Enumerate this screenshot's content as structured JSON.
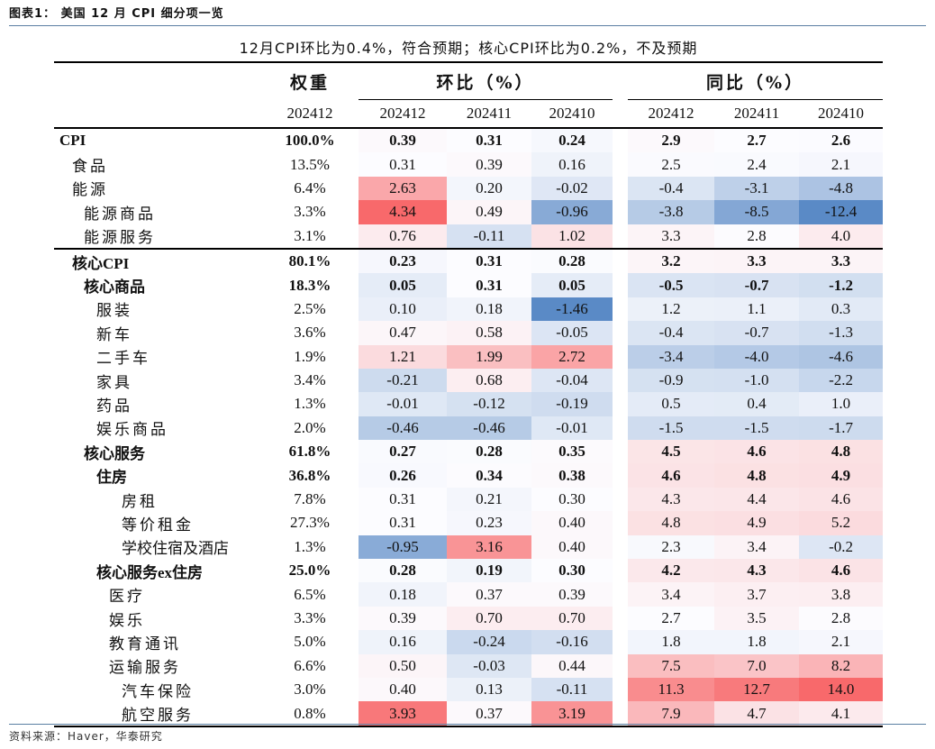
{
  "title": "图表1： 美国 12 月 CPI 细分项一览",
  "subtitle": "12月CPI环比为0.4%，符合预期；核心CPI环比为0.2%，不及预期",
  "headers": {
    "weight": "权重",
    "mom": "环比（%）",
    "yoy": "同比（%）",
    "weight_period": "202412",
    "periods": [
      "202412",
      "202411",
      "202410"
    ]
  },
  "colors": {
    "high": "#F8696B",
    "mid": "#FCFCFF",
    "low": "#5A8AC6"
  },
  "rows": [
    {
      "label": "CPI",
      "level": 0,
      "bold": true,
      "weight": "100.0%",
      "mom": [
        "0.39",
        "0.31",
        "0.24"
      ],
      "yoy": [
        "2.9",
        "2.7",
        "2.6"
      ]
    },
    {
      "label": "食品",
      "level": 1,
      "bold": false,
      "weight": "13.5%",
      "mom": [
        "0.31",
        "0.39",
        "0.16"
      ],
      "yoy": [
        "2.5",
        "2.4",
        "2.1"
      ]
    },
    {
      "label": "能源",
      "level": 1,
      "bold": false,
      "weight": "6.4%",
      "mom": [
        "2.63",
        "0.20",
        "-0.02"
      ],
      "yoy": [
        "-0.4",
        "-3.1",
        "-4.8"
      ]
    },
    {
      "label": "能源商品",
      "level": 2,
      "bold": false,
      "weight": "3.3%",
      "mom": [
        "4.34",
        "0.49",
        "-0.96"
      ],
      "yoy": [
        "-3.8",
        "-8.5",
        "-12.4"
      ]
    },
    {
      "label": "能源服务",
      "level": 2,
      "bold": false,
      "weight": "3.1%",
      "mom": [
        "0.76",
        "-0.11",
        "1.02"
      ],
      "yoy": [
        "3.3",
        "2.8",
        "4.0"
      ]
    },
    {
      "label": "核心CPI",
      "level": 1,
      "bold": true,
      "weight": "80.1%",
      "mom": [
        "0.23",
        "0.31",
        "0.28"
      ],
      "yoy": [
        "3.2",
        "3.3",
        "3.3"
      ]
    },
    {
      "label": "核心商品",
      "level": 2,
      "bold": true,
      "weight": "18.3%",
      "mom": [
        "0.05",
        "0.31",
        "0.05"
      ],
      "yoy": [
        "-0.5",
        "-0.7",
        "-1.2"
      ]
    },
    {
      "label": "服装",
      "level": 3,
      "bold": false,
      "weight": "2.5%",
      "mom": [
        "0.10",
        "0.18",
        "-1.46"
      ],
      "yoy": [
        "1.2",
        "1.1",
        "0.3"
      ]
    },
    {
      "label": "新车",
      "level": 3,
      "bold": false,
      "weight": "3.6%",
      "mom": [
        "0.47",
        "0.58",
        "-0.05"
      ],
      "yoy": [
        "-0.4",
        "-0.7",
        "-1.3"
      ]
    },
    {
      "label": "二手车",
      "level": 3,
      "bold": false,
      "weight": "1.9%",
      "mom": [
        "1.21",
        "1.99",
        "2.72"
      ],
      "yoy": [
        "-3.4",
        "-4.0",
        "-4.6"
      ]
    },
    {
      "label": "家具",
      "level": 3,
      "bold": false,
      "weight": "3.4%",
      "mom": [
        "-0.21",
        "0.68",
        "-0.04"
      ],
      "yoy": [
        "-0.9",
        "-1.0",
        "-2.2"
      ]
    },
    {
      "label": "药品",
      "level": 3,
      "bold": false,
      "weight": "1.3%",
      "mom": [
        "-0.01",
        "-0.12",
        "-0.19"
      ],
      "yoy": [
        "0.5",
        "0.4",
        "1.0"
      ]
    },
    {
      "label": "娱乐商品",
      "level": 3,
      "bold": false,
      "weight": "2.0%",
      "mom": [
        "-0.46",
        "-0.46",
        "-0.01"
      ],
      "yoy": [
        "-1.5",
        "-1.5",
        "-1.7"
      ]
    },
    {
      "label": "核心服务",
      "level": 2,
      "bold": true,
      "weight": "61.8%",
      "mom": [
        "0.27",
        "0.28",
        "0.35"
      ],
      "yoy": [
        "4.5",
        "4.6",
        "4.8"
      ]
    },
    {
      "label": "住房",
      "level": 3,
      "bold": true,
      "weight": "36.8%",
      "mom": [
        "0.26",
        "0.34",
        "0.38"
      ],
      "yoy": [
        "4.6",
        "4.8",
        "4.9"
      ]
    },
    {
      "label": "房租",
      "level": 5,
      "bold": false,
      "weight": "7.8%",
      "mom": [
        "0.31",
        "0.21",
        "0.30"
      ],
      "yoy": [
        "4.3",
        "4.4",
        "4.6"
      ]
    },
    {
      "label": "等价租金",
      "level": 5,
      "bold": false,
      "weight": "27.3%",
      "mom": [
        "0.31",
        "0.23",
        "0.40"
      ],
      "yoy": [
        "4.8",
        "4.9",
        "5.2"
      ]
    },
    {
      "label": "学校住宿及酒店",
      "level": 5,
      "bold": false,
      "weight": "1.3%",
      "mom": [
        "-0.95",
        "3.16",
        "0.40"
      ],
      "yoy": [
        "2.3",
        "3.4",
        "-0.2"
      ]
    },
    {
      "label": "核心服务ex住房",
      "level": 3,
      "bold": true,
      "weight": "25.0%",
      "mom": [
        "0.28",
        "0.19",
        "0.30"
      ],
      "yoy": [
        "4.2",
        "4.3",
        "4.6"
      ]
    },
    {
      "label": "医疗",
      "level": 4,
      "bold": false,
      "weight": "6.5%",
      "mom": [
        "0.18",
        "0.37",
        "0.39"
      ],
      "yoy": [
        "3.4",
        "3.7",
        "3.8"
      ]
    },
    {
      "label": "娱乐",
      "level": 4,
      "bold": false,
      "weight": "3.3%",
      "mom": [
        "0.39",
        "0.70",
        "0.70"
      ],
      "yoy": [
        "2.7",
        "3.5",
        "2.8"
      ]
    },
    {
      "label": "教育通讯",
      "level": 4,
      "bold": false,
      "weight": "5.0%",
      "mom": [
        "0.16",
        "-0.24",
        "-0.16"
      ],
      "yoy": [
        "1.8",
        "1.8",
        "2.1"
      ]
    },
    {
      "label": "运输服务",
      "level": 4,
      "bold": false,
      "weight": "6.6%",
      "mom": [
        "0.50",
        "-0.03",
        "0.44"
      ],
      "yoy": [
        "7.5",
        "7.0",
        "8.2"
      ]
    },
    {
      "label": "汽车保险",
      "level": 5,
      "bold": false,
      "weight": "3.0%",
      "mom": [
        "0.40",
        "0.13",
        "-0.11"
      ],
      "yoy": [
        "11.3",
        "12.7",
        "14.0"
      ]
    },
    {
      "label": "航空服务",
      "level": 5,
      "bold": false,
      "weight": "0.8%",
      "mom": [
        "3.93",
        "0.37",
        "3.19"
      ],
      "yoy": [
        "7.9",
        "4.7",
        "4.1"
      ]
    }
  ],
  "source": "资料来源：Haver，华泰研究"
}
